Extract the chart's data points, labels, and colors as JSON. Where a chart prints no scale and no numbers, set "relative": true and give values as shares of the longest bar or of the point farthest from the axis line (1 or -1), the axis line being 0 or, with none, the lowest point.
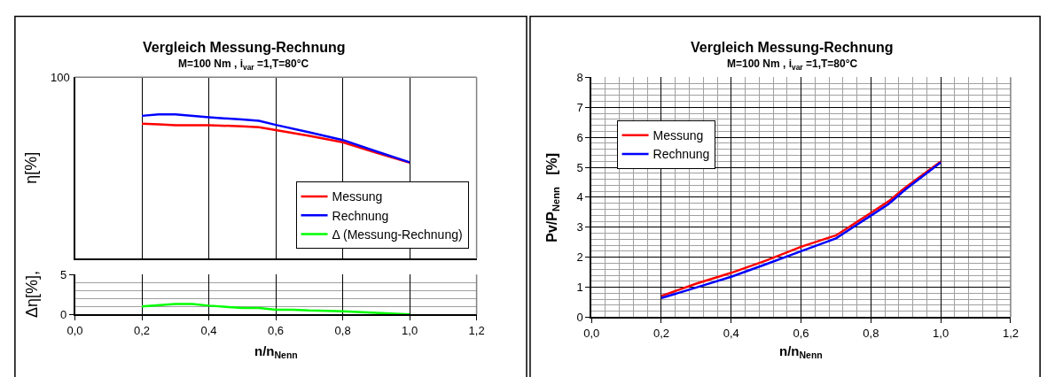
{
  "chart_data": [
    {
      "type": "line",
      "title": "Vergleich Messung-Rechnung",
      "subtitle": "M=100 Nm , i$_{var}$ =1,T=80°C",
      "ylabel": "η[%]",
      "relative": true,
      "annotations": [
        "100"
      ],
      "x": [
        0.2,
        0.25,
        0.3,
        0.4,
        0.5,
        0.55,
        0.6,
        0.7,
        0.8,
        0.9,
        1.0
      ],
      "series": [
        {
          "name": "Messung",
          "color": "#ff0000",
          "values": [
            0.935,
            0.93,
            0.925,
            0.925,
            0.917,
            0.911,
            0.891,
            0.851,
            0.806,
            0.733,
            0.664
          ]
        },
        {
          "name": "Rechnung",
          "color": "#0000ff",
          "values": [
            0.99,
            1.0,
            1.0,
            0.98,
            0.964,
            0.955,
            0.927,
            0.875,
            0.822,
            0.743,
            0.667
          ]
        }
      ],
      "xlim": [
        0,
        1.2
      ],
      "xticks": [
        0,
        0.2,
        0.4,
        0.6,
        0.8,
        1.0,
        1.2
      ],
      "tick_labels": false,
      "grid": "x",
      "legend": "bottom right",
      "line_style": "solid"
    },
    {
      "type": "line",
      "xlabel": "n/n$_{Nenn}$",
      "ylabel": "Δη[%],",
      "x": [
        0.2,
        0.3,
        0.35,
        0.4,
        0.5,
        0.55,
        0.6,
        0.65,
        0.7,
        0.8,
        0.9,
        1.0
      ],
      "series": [
        {
          "name": "Δ (Messung-Rechnung)",
          "color": "#00ff00",
          "values": [
            1.0,
            1.3,
            1.3,
            1.1,
            0.8,
            0.8,
            0.6,
            0.6,
            0.5,
            0.4,
            0.2,
            0.0
          ]
        }
      ],
      "xlim": [
        0,
        1.2
      ],
      "xticks": [
        {
          "value": 0,
          "label": "0,0"
        },
        {
          "value": 0.2,
          "label": "0,2"
        },
        {
          "value": 0.4,
          "label": "0,4"
        },
        {
          "value": 0.6,
          "label": "0,6"
        },
        {
          "value": 0.8,
          "label": "0,8"
        },
        {
          "value": 1.0,
          "label": "1,0"
        },
        {
          "value": 1.2,
          "label": "1,2"
        }
      ],
      "ylim": [
        0,
        5
      ],
      "yticks": [
        0,
        {
          "value": 1,
          "label": null
        },
        {
          "value": 2,
          "label": null
        },
        {
          "value": 3,
          "label": null
        },
        {
          "value": 4,
          "label": null
        },
        5
      ],
      "grid": true,
      "line_style": "solid"
    },
    {
      "type": "line",
      "title": "Vergleich Messung-Rechnung",
      "subtitle": "M=100 Nm , i$_{var}$ =1,T=80°C",
      "xlabel": "n/n$_{Nenn}$",
      "ylabel": "Pv/P$_{Nenn}$   [%]",
      "x": [
        0.2,
        0.3,
        0.4,
        0.5,
        0.6,
        0.7,
        0.75,
        0.8,
        0.85,
        0.9,
        1.0
      ],
      "series": [
        {
          "name": "Messung",
          "color": "#ff0000",
          "values": [
            0.71,
            1.12,
            1.48,
            1.89,
            2.35,
            2.73,
            3.1,
            3.48,
            3.86,
            4.34,
            5.19
          ]
        },
        {
          "name": "Rechnung",
          "color": "#0000ff",
          "values": [
            0.64,
            0.99,
            1.35,
            1.77,
            2.2,
            2.63,
            3.01,
            3.39,
            3.77,
            4.27,
            5.16
          ]
        }
      ],
      "xlim": [
        0,
        1.2
      ],
      "xticks": [
        {
          "value": 0,
          "label": "0,0"
        },
        {
          "value": 0.04,
          "label": null
        },
        {
          "value": 0.08,
          "label": null
        },
        {
          "value": 0.12,
          "label": null
        },
        {
          "value": 0.16,
          "label": null
        },
        {
          "value": 0.2,
          "label": "0,2"
        },
        {
          "value": 0.24,
          "label": null
        },
        {
          "value": 0.28,
          "label": null
        },
        {
          "value": 0.32,
          "label": null
        },
        {
          "value": 0.36,
          "label": null
        },
        {
          "value": 0.4,
          "label": "0,4"
        },
        {
          "value": 0.44,
          "label": null
        },
        {
          "value": 0.48,
          "label": null
        },
        {
          "value": 0.52,
          "label": null
        },
        {
          "value": 0.56,
          "label": null
        },
        {
          "value": 0.6,
          "label": "0,6"
        },
        {
          "value": 0.64,
          "label": null
        },
        {
          "value": 0.68,
          "label": null
        },
        {
          "value": 0.72,
          "label": null
        },
        {
          "value": 0.76,
          "label": null
        },
        {
          "value": 0.8,
          "label": "0,8"
        },
        {
          "value": 0.84,
          "label": null
        },
        {
          "value": 0.88,
          "label": null
        },
        {
          "value": 0.92,
          "label": null
        },
        {
          "value": 0.96,
          "label": null
        },
        {
          "value": 1.0,
          "label": "1,0"
        },
        {
          "value": 1.04,
          "label": null
        },
        {
          "value": 1.08,
          "label": null
        },
        {
          "value": 1.12,
          "label": null
        },
        {
          "value": 1.16,
          "label": null
        },
        {
          "value": 1.2,
          "label": "1,2"
        }
      ],
      "ylim": [
        0,
        8
      ],
      "yticks": [
        0,
        {
          "value": 0.2,
          "label": null
        },
        {
          "value": 0.4,
          "label": null
        },
        {
          "value": 0.6,
          "label": null
        },
        {
          "value": 0.8,
          "label": null
        },
        1,
        {
          "value": 1.2,
          "label": null
        },
        {
          "value": 1.4,
          "label": null
        },
        {
          "value": 1.6,
          "label": null
        },
        {
          "value": 1.8,
          "label": null
        },
        2,
        {
          "value": 2.2,
          "label": null
        },
        {
          "value": 2.4,
          "label": null
        },
        {
          "value": 2.6,
          "label": null
        },
        {
          "value": 2.8,
          "label": null
        },
        3,
        {
          "value": 3.2,
          "label": null
        },
        {
          "value": 3.4,
          "label": null
        },
        {
          "value": 3.6,
          "label": null
        },
        {
          "value": 3.8,
          "label": null
        },
        4,
        {
          "value": 4.2,
          "label": null
        },
        {
          "value": 4.4,
          "label": null
        },
        {
          "value": 4.6,
          "label": null
        },
        {
          "value": 4.8,
          "label": null
        },
        5,
        {
          "value": 5.2,
          "label": null
        },
        {
          "value": 5.4,
          "label": null
        },
        {
          "value": 5.6,
          "label": null
        },
        {
          "value": 5.8,
          "label": null
        },
        6,
        {
          "value": 6.2,
          "label": null
        },
        {
          "value": 6.4,
          "label": null
        },
        {
          "value": 6.6,
          "label": null
        },
        {
          "value": 6.8,
          "label": null
        },
        7,
        {
          "value": 7.2,
          "label": null
        },
        {
          "value": 7.4,
          "label": null
        },
        {
          "value": 7.6,
          "label": null
        },
        {
          "value": 7.8,
          "label": null
        },
        8
      ],
      "grid": true,
      "legend": "top left",
      "line_style": "solid"
    }
  ]
}
